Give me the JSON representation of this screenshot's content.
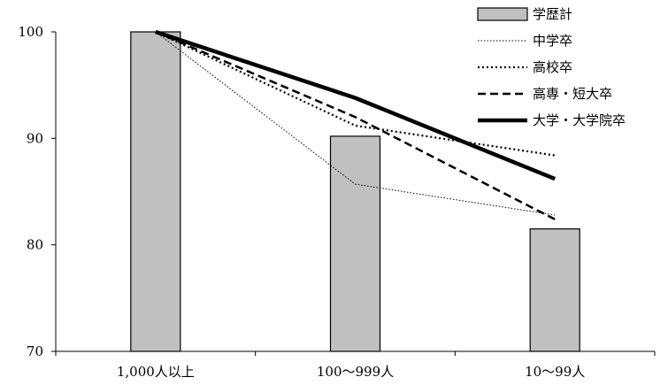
{
  "chart_data": {
    "type": "bar",
    "categories": [
      "1,000人以上",
      "100～999人",
      "10～99人"
    ],
    "ylim": [
      70,
      100
    ],
    "yticks": [
      70,
      80,
      90,
      100
    ],
    "grid": false,
    "legend_position": "top-right",
    "series": [
      {
        "name": "学歴計",
        "type": "bar",
        "values": [
          100.0,
          90.2,
          81.5
        ],
        "color": "#c0c0c0",
        "stroke": "#000000"
      },
      {
        "name": "中学卒",
        "type": "line",
        "values": [
          100.0,
          85.7,
          82.8
        ],
        "color": "#000000",
        "style": "thin-dotted"
      },
      {
        "name": "高校卒",
        "type": "line",
        "values": [
          100.0,
          91.2,
          88.4
        ],
        "color": "#000000",
        "style": "dotted"
      },
      {
        "name": "高専・短大卒",
        "type": "line",
        "values": [
          100.0,
          92.0,
          82.4
        ],
        "color": "#000000",
        "style": "dashed"
      },
      {
        "name": "大学・大学院卒",
        "type": "line",
        "values": [
          100.0,
          93.8,
          86.2
        ],
        "color": "#000000",
        "style": "thick-solid"
      }
    ]
  }
}
